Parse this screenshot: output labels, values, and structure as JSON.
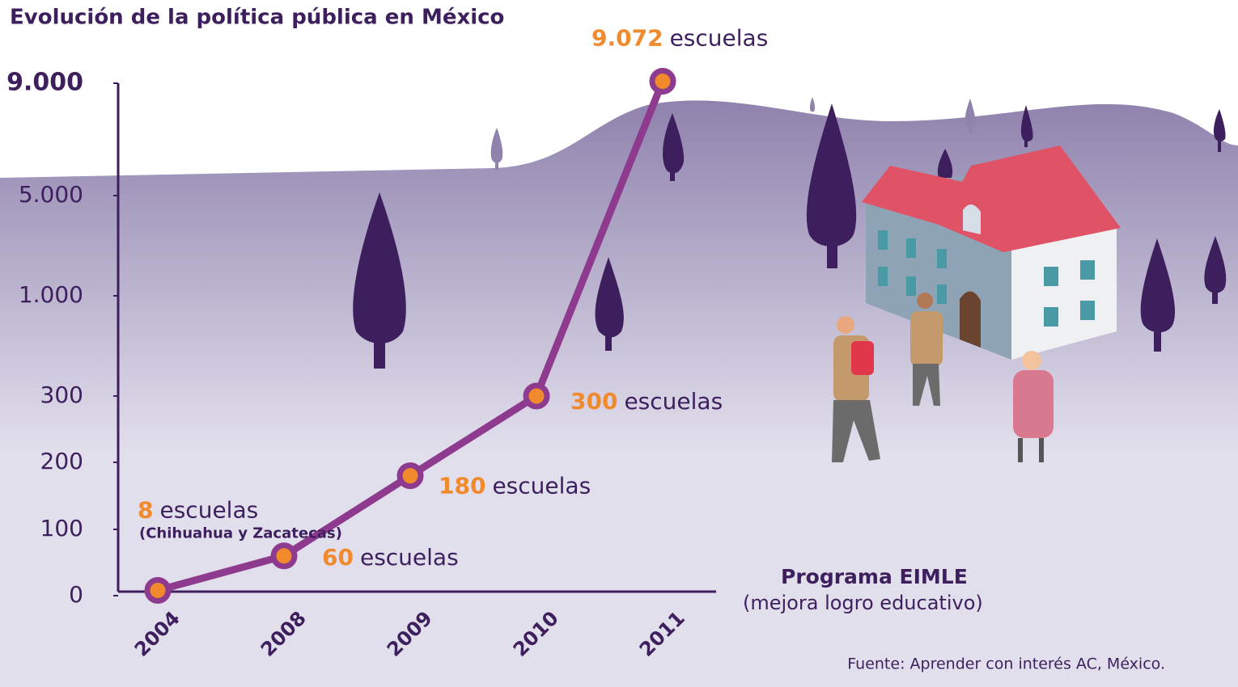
{
  "chart_data": {
    "type": "line",
    "title": "Evolución de la política pública en México",
    "categories": [
      "2004",
      "2008",
      "2009",
      "2010",
      "2011"
    ],
    "series": [
      {
        "name": "Programa EIMLE",
        "color": "#8e3a8e",
        "values": [
          8,
          60,
          180,
          300,
          9072
        ]
      }
    ],
    "value_labels": [
      "8",
      "60",
      "180",
      "300",
      "9.072"
    ],
    "unit_label": "escuelas",
    "annotation": "(Chihuahua y Zacatecas)",
    "program_subtitle": "(mejora logro educativo)",
    "source": "Fuente: Aprender con interés AC, México.",
    "ylim": [
      0,
      9000
    ],
    "yticks": [
      0,
      100,
      200,
      300,
      {
        "value": 1000,
        "label": "1.000"
      },
      {
        "value": 5000,
        "label": "5.000"
      },
      {
        "value": 9000,
        "label": "9.000"
      }
    ],
    "label_color": "#f08a2c"
  }
}
